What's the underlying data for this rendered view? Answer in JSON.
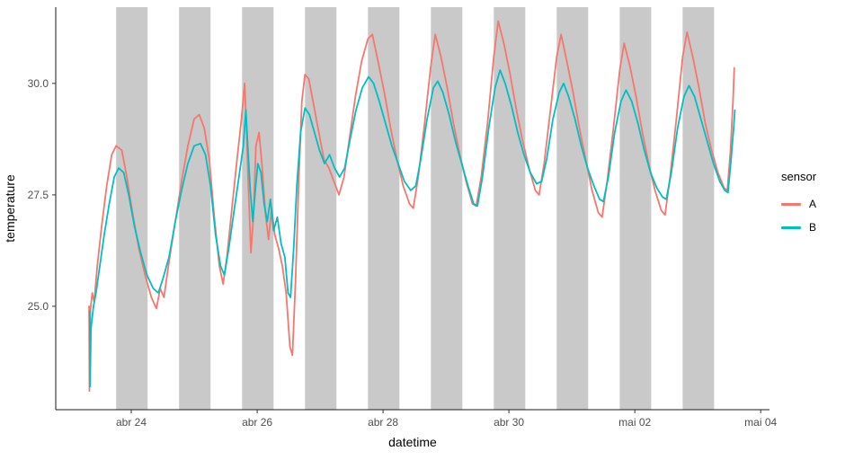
{
  "chart_data": {
    "type": "line",
    "title": "",
    "xlabel": "datetime",
    "ylabel": "temperature",
    "x_encoding": "days, where 1 = abr 24 and each unit = 1 day",
    "xlim": [
      -0.2,
      11.14
    ],
    "ylim": [
      22.68,
      31.71
    ],
    "grid": "off",
    "x_ticks": [
      {
        "x": 1,
        "label": "abr 24"
      },
      {
        "x": 3,
        "label": "abr 26"
      },
      {
        "x": 5,
        "label": "abr 28"
      },
      {
        "x": 7,
        "label": "abr 30"
      },
      {
        "x": 9,
        "label": "mai 02"
      },
      {
        "x": 11,
        "label": "mai 04"
      }
    ],
    "y_ticks": [
      {
        "y": 25.0,
        "label": "25.0"
      },
      {
        "y": 27.5,
        "label": "27.5"
      },
      {
        "y": 30.0,
        "label": "30.0"
      }
    ],
    "band_color": "#C9C9C9",
    "shaded_bands": [
      {
        "from": 0.76,
        "to": 1.26
      },
      {
        "from": 1.76,
        "to": 2.26
      },
      {
        "from": 2.76,
        "to": 3.26
      },
      {
        "from": 3.76,
        "to": 4.26
      },
      {
        "from": 4.76,
        "to": 5.26
      },
      {
        "from": 5.76,
        "to": 6.26
      },
      {
        "from": 6.76,
        "to": 7.26
      },
      {
        "from": 7.76,
        "to": 8.26
      },
      {
        "from": 8.76,
        "to": 9.26
      },
      {
        "from": 9.76,
        "to": 10.26
      }
    ],
    "legend": {
      "title": "sensor",
      "position": "right",
      "entries": [
        {
          "name": "A",
          "color": "#F8766D"
        },
        {
          "name": "B",
          "color": "#00BFC4"
        }
      ]
    },
    "series": [
      {
        "name": "A",
        "color": "#F8766D",
        "points": [
          [
            0.33,
            25.0
          ],
          [
            0.335,
            23.1
          ],
          [
            0.35,
            24.9
          ],
          [
            0.38,
            25.3
          ],
          [
            0.41,
            25.1
          ],
          [
            0.46,
            25.9
          ],
          [
            0.53,
            26.8
          ],
          [
            0.61,
            27.7
          ],
          [
            0.69,
            28.4
          ],
          [
            0.76,
            28.6
          ],
          [
            0.85,
            28.5
          ],
          [
            0.93,
            27.9
          ],
          [
            1.02,
            27.1
          ],
          [
            1.12,
            26.3
          ],
          [
            1.22,
            25.7
          ],
          [
            1.32,
            25.2
          ],
          [
            1.4,
            24.95
          ],
          [
            1.46,
            25.4
          ],
          [
            1.52,
            25.2
          ],
          [
            1.6,
            26.0
          ],
          [
            1.7,
            26.9
          ],
          [
            1.8,
            27.8
          ],
          [
            1.9,
            28.6
          ],
          [
            2.0,
            29.2
          ],
          [
            2.08,
            29.3
          ],
          [
            2.16,
            29.0
          ],
          [
            2.24,
            28.3
          ],
          [
            2.32,
            27.0
          ],
          [
            2.4,
            25.9
          ],
          [
            2.46,
            25.5
          ],
          [
            2.52,
            26.1
          ],
          [
            2.6,
            27.2
          ],
          [
            2.68,
            28.3
          ],
          [
            2.75,
            29.2
          ],
          [
            2.8,
            30.0
          ],
          [
            2.83,
            29.0
          ],
          [
            2.86,
            27.7
          ],
          [
            2.9,
            26.2
          ],
          [
            2.94,
            27.0
          ],
          [
            2.98,
            28.6
          ],
          [
            3.03,
            28.9
          ],
          [
            3.08,
            28.1
          ],
          [
            3.13,
            27.1
          ],
          [
            3.18,
            26.5
          ],
          [
            3.23,
            27.2
          ],
          [
            3.28,
            26.6
          ],
          [
            3.34,
            26.3
          ],
          [
            3.4,
            25.9
          ],
          [
            3.46,
            25.3
          ],
          [
            3.52,
            24.1
          ],
          [
            3.56,
            23.9
          ],
          [
            3.61,
            25.6
          ],
          [
            3.66,
            27.8
          ],
          [
            3.71,
            29.6
          ],
          [
            3.76,
            30.2
          ],
          [
            3.82,
            30.1
          ],
          [
            3.9,
            29.5
          ],
          [
            3.98,
            28.9
          ],
          [
            4.06,
            28.3
          ],
          [
            4.14,
            28.1
          ],
          [
            4.22,
            27.8
          ],
          [
            4.3,
            27.5
          ],
          [
            4.38,
            27.9
          ],
          [
            4.46,
            28.7
          ],
          [
            4.56,
            29.7
          ],
          [
            4.66,
            30.5
          ],
          [
            4.76,
            31.0
          ],
          [
            4.83,
            31.1
          ],
          [
            4.92,
            30.5
          ],
          [
            5.02,
            29.8
          ],
          [
            5.12,
            29.0
          ],
          [
            5.22,
            28.3
          ],
          [
            5.32,
            27.7
          ],
          [
            5.42,
            27.3
          ],
          [
            5.48,
            27.2
          ],
          [
            5.56,
            27.9
          ],
          [
            5.66,
            29.1
          ],
          [
            5.76,
            30.4
          ],
          [
            5.83,
            31.1
          ],
          [
            5.92,
            30.6
          ],
          [
            6.02,
            29.9
          ],
          [
            6.12,
            29.1
          ],
          [
            6.22,
            28.4
          ],
          [
            6.32,
            27.8
          ],
          [
            6.42,
            27.3
          ],
          [
            6.48,
            27.25
          ],
          [
            6.56,
            27.9
          ],
          [
            6.66,
            29.1
          ],
          [
            6.76,
            30.6
          ],
          [
            6.83,
            31.4
          ],
          [
            6.92,
            30.9
          ],
          [
            7.02,
            30.2
          ],
          [
            7.12,
            29.4
          ],
          [
            7.22,
            28.7
          ],
          [
            7.32,
            28.1
          ],
          [
            7.42,
            27.6
          ],
          [
            7.48,
            27.5
          ],
          [
            7.56,
            28.2
          ],
          [
            7.66,
            29.4
          ],
          [
            7.76,
            30.6
          ],
          [
            7.83,
            31.1
          ],
          [
            7.92,
            30.5
          ],
          [
            8.02,
            29.8
          ],
          [
            8.12,
            29.0
          ],
          [
            8.22,
            28.3
          ],
          [
            8.32,
            27.6
          ],
          [
            8.42,
            27.1
          ],
          [
            8.48,
            27.0
          ],
          [
            8.56,
            27.8
          ],
          [
            8.66,
            29.0
          ],
          [
            8.76,
            30.3
          ],
          [
            8.83,
            30.9
          ],
          [
            8.92,
            30.4
          ],
          [
            9.02,
            29.7
          ],
          [
            9.12,
            28.9
          ],
          [
            9.22,
            28.2
          ],
          [
            9.32,
            27.6
          ],
          [
            9.42,
            27.15
          ],
          [
            9.48,
            27.05
          ],
          [
            9.56,
            27.9
          ],
          [
            9.66,
            29.2
          ],
          [
            9.76,
            30.6
          ],
          [
            9.83,
            31.15
          ],
          [
            9.92,
            30.6
          ],
          [
            10.02,
            29.9
          ],
          [
            10.12,
            29.1
          ],
          [
            10.22,
            28.5
          ],
          [
            10.32,
            28.0
          ],
          [
            10.42,
            27.65
          ],
          [
            10.47,
            27.6
          ],
          [
            10.52,
            28.5
          ],
          [
            10.56,
            29.6
          ],
          [
            10.58,
            30.35
          ]
        ]
      },
      {
        "name": "B",
        "color": "#00BFC4",
        "points": [
          [
            0.34,
            24.9
          ],
          [
            0.345,
            23.2
          ],
          [
            0.36,
            24.5
          ],
          [
            0.4,
            25.0
          ],
          [
            0.44,
            25.3
          ],
          [
            0.5,
            25.9
          ],
          [
            0.57,
            26.6
          ],
          [
            0.65,
            27.3
          ],
          [
            0.73,
            27.9
          ],
          [
            0.8,
            28.1
          ],
          [
            0.88,
            28.0
          ],
          [
            0.96,
            27.5
          ],
          [
            1.05,
            26.8
          ],
          [
            1.15,
            26.2
          ],
          [
            1.25,
            25.7
          ],
          [
            1.35,
            25.4
          ],
          [
            1.43,
            25.3
          ],
          [
            1.5,
            25.6
          ],
          [
            1.6,
            26.1
          ],
          [
            1.7,
            26.9
          ],
          [
            1.8,
            27.6
          ],
          [
            1.9,
            28.2
          ],
          [
            2.0,
            28.6
          ],
          [
            2.1,
            28.65
          ],
          [
            2.18,
            28.4
          ],
          [
            2.26,
            27.7
          ],
          [
            2.34,
            26.6
          ],
          [
            2.42,
            25.9
          ],
          [
            2.48,
            25.7
          ],
          [
            2.55,
            26.3
          ],
          [
            2.63,
            27.1
          ],
          [
            2.71,
            27.9
          ],
          [
            2.78,
            28.6
          ],
          [
            2.82,
            29.4
          ],
          [
            2.85,
            28.6
          ],
          [
            2.89,
            27.6
          ],
          [
            2.93,
            26.9
          ],
          [
            2.97,
            27.6
          ],
          [
            3.01,
            28.2
          ],
          [
            3.06,
            28.0
          ],
          [
            3.11,
            27.3
          ],
          [
            3.16,
            26.9
          ],
          [
            3.21,
            27.4
          ],
          [
            3.26,
            26.7
          ],
          [
            3.32,
            27.0
          ],
          [
            3.38,
            26.4
          ],
          [
            3.44,
            26.1
          ],
          [
            3.49,
            25.3
          ],
          [
            3.53,
            25.2
          ],
          [
            3.58,
            26.3
          ],
          [
            3.63,
            27.7
          ],
          [
            3.69,
            28.9
          ],
          [
            3.76,
            29.45
          ],
          [
            3.83,
            29.3
          ],
          [
            3.91,
            28.9
          ],
          [
            3.99,
            28.5
          ],
          [
            4.07,
            28.2
          ],
          [
            4.15,
            28.4
          ],
          [
            4.23,
            28.1
          ],
          [
            4.31,
            27.9
          ],
          [
            4.39,
            28.1
          ],
          [
            4.47,
            28.7
          ],
          [
            4.57,
            29.4
          ],
          [
            4.67,
            29.9
          ],
          [
            4.77,
            30.15
          ],
          [
            4.85,
            30.0
          ],
          [
            4.94,
            29.6
          ],
          [
            5.04,
            29.1
          ],
          [
            5.14,
            28.6
          ],
          [
            5.24,
            28.2
          ],
          [
            5.34,
            27.8
          ],
          [
            5.44,
            27.6
          ],
          [
            5.52,
            27.7
          ],
          [
            5.6,
            28.3
          ],
          [
            5.7,
            29.2
          ],
          [
            5.8,
            29.9
          ],
          [
            5.87,
            30.05
          ],
          [
            5.95,
            29.8
          ],
          [
            6.05,
            29.3
          ],
          [
            6.15,
            28.7
          ],
          [
            6.25,
            28.2
          ],
          [
            6.35,
            27.7
          ],
          [
            6.44,
            27.3
          ],
          [
            6.5,
            27.25
          ],
          [
            6.58,
            27.9
          ],
          [
            6.68,
            29.0
          ],
          [
            6.78,
            29.9
          ],
          [
            6.86,
            30.3
          ],
          [
            6.94,
            30.0
          ],
          [
            7.04,
            29.5
          ],
          [
            7.14,
            28.9
          ],
          [
            7.24,
            28.4
          ],
          [
            7.34,
            28.0
          ],
          [
            7.44,
            27.75
          ],
          [
            7.52,
            27.8
          ],
          [
            7.6,
            28.3
          ],
          [
            7.7,
            29.2
          ],
          [
            7.8,
            29.8
          ],
          [
            7.87,
            30.0
          ],
          [
            7.95,
            29.7
          ],
          [
            8.05,
            29.2
          ],
          [
            8.15,
            28.6
          ],
          [
            8.25,
            28.1
          ],
          [
            8.35,
            27.7
          ],
          [
            8.44,
            27.4
          ],
          [
            8.5,
            27.35
          ],
          [
            8.58,
            27.9
          ],
          [
            8.68,
            28.9
          ],
          [
            8.78,
            29.6
          ],
          [
            8.86,
            29.85
          ],
          [
            8.95,
            29.6
          ],
          [
            9.05,
            29.1
          ],
          [
            9.15,
            28.5
          ],
          [
            9.25,
            28.0
          ],
          [
            9.35,
            27.65
          ],
          [
            9.44,
            27.45
          ],
          [
            9.5,
            27.4
          ],
          [
            9.58,
            28.0
          ],
          [
            9.68,
            29.0
          ],
          [
            9.78,
            29.7
          ],
          [
            9.86,
            29.95
          ],
          [
            9.95,
            29.7
          ],
          [
            10.05,
            29.2
          ],
          [
            10.15,
            28.7
          ],
          [
            10.25,
            28.2
          ],
          [
            10.35,
            27.8
          ],
          [
            10.43,
            27.6
          ],
          [
            10.48,
            27.55
          ],
          [
            10.53,
            28.3
          ],
          [
            10.57,
            29.0
          ],
          [
            10.59,
            29.4
          ]
        ]
      }
    ]
  }
}
